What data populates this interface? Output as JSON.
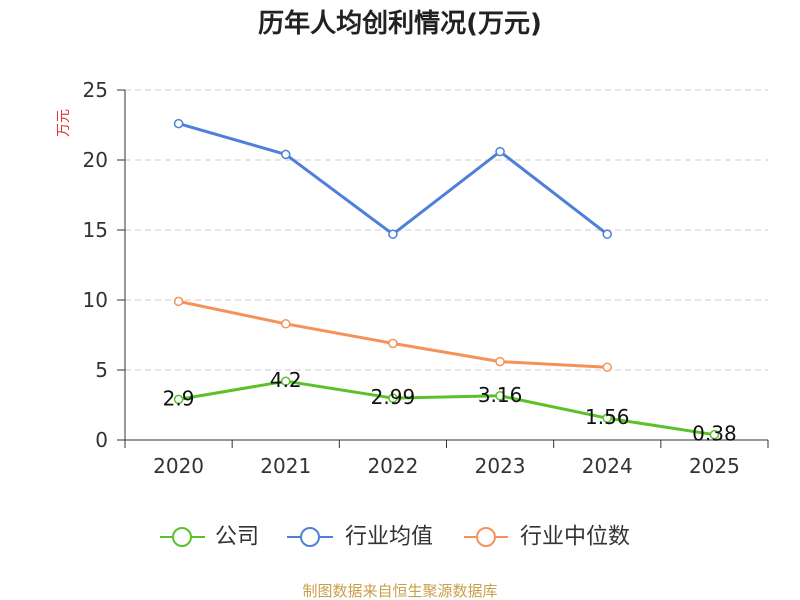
{
  "chart_data": {
    "type": "line",
    "title": "历年人均创利情况(万元)",
    "xlabel": "",
    "ylabel": "万元",
    "categories": [
      "2020",
      "2021",
      "2022",
      "2023",
      "2024",
      "2025"
    ],
    "ylim": [
      0,
      25
    ],
    "y_ticks": [
      0,
      5,
      10,
      15,
      20,
      25
    ],
    "grid": true,
    "legend_position": "bottom-center",
    "series": [
      {
        "name": "公司",
        "color": "#5ac228",
        "show_labels": true,
        "values": [
          2.9,
          4.2,
          2.99,
          3.16,
          1.56,
          0.38
        ]
      },
      {
        "name": "行业均值",
        "color": "#4e80d9",
        "show_labels": false,
        "values": [
          22.6,
          20.4,
          14.7,
          20.6,
          14.7,
          null
        ]
      },
      {
        "name": "行业中位数",
        "color": "#f59259",
        "show_labels": false,
        "values": [
          9.9,
          8.3,
          6.9,
          5.6,
          5.2,
          null
        ]
      }
    ]
  },
  "colors": {
    "title": "#222222",
    "ylabel": "#e0342f",
    "footer": "#c9a04a",
    "axis": "#333333",
    "grid": "#cccccc"
  },
  "footer": "制图数据来自恒生聚源数据库"
}
